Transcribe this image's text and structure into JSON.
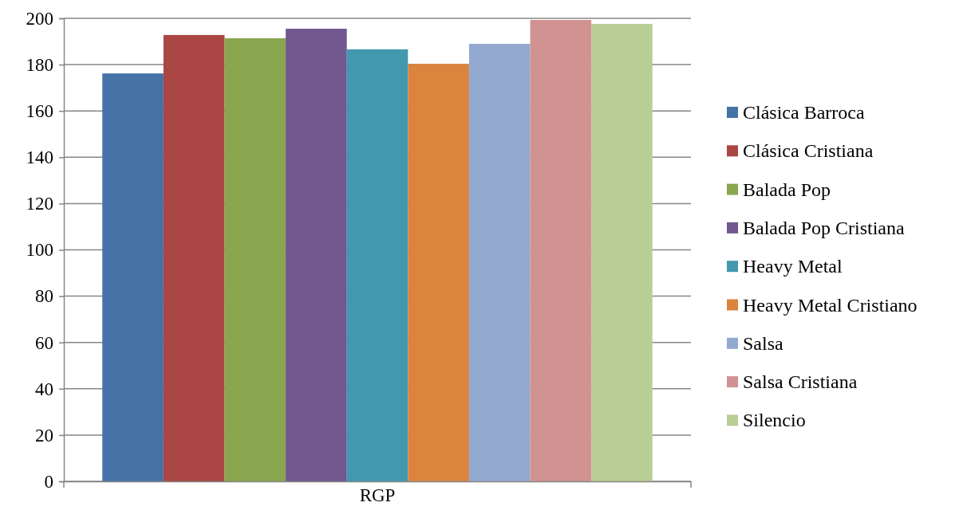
{
  "chart_data": {
    "type": "bar",
    "categories": [
      "RGP"
    ],
    "series": [
      {
        "name": "Clásica Barroca",
        "color": "#4572a7",
        "values": [
          176.2
        ]
      },
      {
        "name": "Clásica Cristiana",
        "color": "#aa4643",
        "values": [
          192.8
        ]
      },
      {
        "name": "Balada Pop",
        "color": "#89a54e",
        "values": [
          191.4
        ]
      },
      {
        "name": "Balada Pop Cristiana",
        "color": "#71588f",
        "values": [
          195.5
        ]
      },
      {
        "name": "Heavy Metal",
        "color": "#4198af",
        "values": [
          186.6
        ]
      },
      {
        "name": "Heavy Metal Cristiano",
        "color": "#db843d",
        "values": [
          180.3
        ]
      },
      {
        "name": "Salsa",
        "color": "#93a9cf",
        "values": [
          189
        ]
      },
      {
        "name": "Salsa Cristiana",
        "color": "#d19392",
        "values": [
          199.3
        ]
      },
      {
        "name": "Silencio",
        "color": "#b9cd96",
        "values": [
          197.6
        ]
      }
    ],
    "ylim": [
      0,
      200
    ],
    "yticks": [
      0,
      20,
      40,
      60,
      80,
      100,
      120,
      140,
      160,
      180,
      200
    ],
    "grid": "y",
    "legend": "right"
  }
}
